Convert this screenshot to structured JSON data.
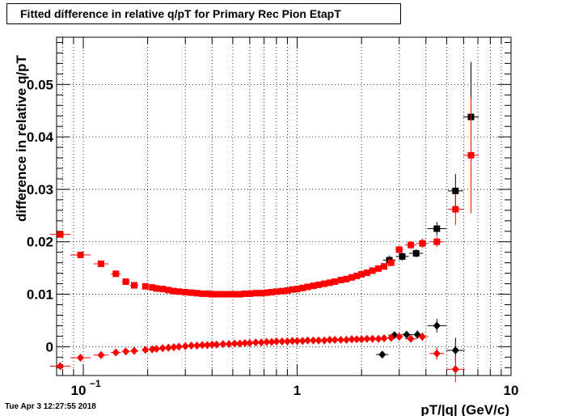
{
  "footer": {
    "timestamp": "Tue Apr  3 12:27:55 2018"
  },
  "chart_data": {
    "type": "scatter",
    "title": "Fitted difference in relative q/pT for Primary Rec Pion EtapT",
    "xlabel": "pT/|q| (GeV/c)",
    "ylabel": "difference in relative q/pT",
    "xscale": "log",
    "xlim": [
      0.075,
      10
    ],
    "ylim": [
      -0.0055,
      0.059
    ],
    "grid": true,
    "x_ticks": [
      {
        "value": 0.1,
        "base": "10",
        "exp": "−1"
      },
      {
        "value": 1,
        "label": "1"
      },
      {
        "value": 10,
        "label": "10"
      }
    ],
    "y_ticks": [
      {
        "value": 0,
        "label": "0"
      },
      {
        "value": 0.01,
        "label": "0.01"
      },
      {
        "value": 0.02,
        "label": "0.02"
      },
      {
        "value": 0.03,
        "label": "0.03"
      },
      {
        "value": 0.04,
        "label": "0.04"
      },
      {
        "value": 0.05,
        "label": "0.05"
      }
    ],
    "series": [
      {
        "color": "#000000",
        "marker": "square",
        "points": [
          [
            2.7,
            0.0165,
            0.0009
          ],
          [
            3.1,
            0.0172,
            0.0008
          ],
          [
            3.6,
            0.0178,
            0.0008
          ],
          [
            4.5,
            0.0225,
            0.0013
          ],
          [
            5.5,
            0.0297,
            0.0032
          ],
          [
            6.5,
            0.0438,
            0.0105
          ]
        ]
      },
      {
        "color": "#000000",
        "marker": "diamond",
        "points": [
          [
            2.5,
            -0.0015,
            0.0004
          ],
          [
            2.85,
            0.0022,
            0.0006
          ],
          [
            3.25,
            0.0023,
            0.0007
          ],
          [
            3.65,
            0.0023,
            0.0008
          ],
          [
            4.5,
            0.004,
            0.0013
          ],
          [
            5.5,
            -0.0007,
            0.0024
          ]
        ]
      },
      {
        "color": "#ff0000",
        "marker": "square",
        "points": [
          [
            0.078,
            0.0214,
            0.0005
          ],
          [
            0.097,
            0.0175,
            0.0005
          ],
          [
            0.121,
            0.0158,
            0.0004
          ],
          [
            0.142,
            0.0139,
            0.0004
          ],
          [
            0.158,
            0.0124,
            0.0004
          ],
          [
            0.173,
            0.0117,
            0.0003
          ],
          [
            0.195,
            0.0115,
            0.0003
          ],
          [
            0.21,
            0.0113,
            0.0003
          ],
          [
            0.22,
            0.0111,
            0.0003
          ],
          [
            0.235,
            0.011,
            0.0003
          ],
          [
            0.25,
            0.0108,
            0.0003
          ],
          [
            0.265,
            0.0106,
            0.0003
          ],
          [
            0.28,
            0.0105,
            0.0003
          ],
          [
            0.3,
            0.0104,
            0.0003
          ],
          [
            0.32,
            0.0103,
            0.0003
          ],
          [
            0.34,
            0.0102,
            0.0003
          ],
          [
            0.36,
            0.0101,
            0.0003
          ],
          [
            0.38,
            0.0101,
            0.0003
          ],
          [
            0.4,
            0.01,
            0.0003
          ],
          [
            0.42,
            0.01,
            0.0003
          ],
          [
            0.45,
            0.01,
            0.0003
          ],
          [
            0.48,
            0.01,
            0.0003
          ],
          [
            0.51,
            0.01,
            0.0003
          ],
          [
            0.54,
            0.01,
            0.0003
          ],
          [
            0.57,
            0.0101,
            0.0003
          ],
          [
            0.6,
            0.0101,
            0.0003
          ],
          [
            0.64,
            0.0102,
            0.0003
          ],
          [
            0.68,
            0.0102,
            0.0003
          ],
          [
            0.72,
            0.0103,
            0.0003
          ],
          [
            0.76,
            0.0104,
            0.0003
          ],
          [
            0.8,
            0.0105,
            0.0003
          ],
          [
            0.85,
            0.0106,
            0.0003
          ],
          [
            0.9,
            0.0107,
            0.0003
          ],
          [
            0.95,
            0.0109,
            0.0003
          ],
          [
            1.0,
            0.011,
            0.0003
          ],
          [
            1.06,
            0.0112,
            0.0003
          ],
          [
            1.12,
            0.0114,
            0.0003
          ],
          [
            1.19,
            0.0116,
            0.0003
          ],
          [
            1.26,
            0.0118,
            0.0003
          ],
          [
            1.34,
            0.012,
            0.0004
          ],
          [
            1.42,
            0.0122,
            0.0004
          ],
          [
            1.5,
            0.0124,
            0.0004
          ],
          [
            1.6,
            0.0127,
            0.0004
          ],
          [
            1.7,
            0.0129,
            0.0004
          ],
          [
            1.8,
            0.0132,
            0.0004
          ],
          [
            1.9,
            0.0135,
            0.0004
          ],
          [
            2.0,
            0.0138,
            0.0004
          ],
          [
            2.12,
            0.0141,
            0.0004
          ],
          [
            2.25,
            0.0145,
            0.0005
          ],
          [
            2.4,
            0.0149,
            0.0005
          ],
          [
            2.55,
            0.0153,
            0.0005
          ],
          [
            2.75,
            0.016,
            0.0006
          ],
          [
            3.0,
            0.0185,
            0.0007
          ],
          [
            3.4,
            0.0194,
            0.0008
          ],
          [
            3.85,
            0.0197,
            0.0009
          ],
          [
            4.5,
            0.02,
            0.001
          ],
          [
            5.5,
            0.0262,
            0.003
          ],
          [
            6.5,
            0.0365,
            0.011
          ]
        ]
      },
      {
        "color": "#ff0000",
        "marker": "diamond",
        "points": [
          [
            0.078,
            -0.0037,
            0.0004
          ],
          [
            0.097,
            -0.0021,
            0.0004
          ],
          [
            0.121,
            -0.0016,
            0.0004
          ],
          [
            0.142,
            -0.0011,
            0.0004
          ],
          [
            0.158,
            -0.0009,
            0.0003
          ],
          [
            0.173,
            -0.0008,
            0.0003
          ],
          [
            0.195,
            -0.0006,
            0.0003
          ],
          [
            0.21,
            -0.0005,
            0.0003
          ],
          [
            0.22,
            -0.0004,
            0.0003
          ],
          [
            0.235,
            -0.0003,
            0.0003
          ],
          [
            0.25,
            -0.0002,
            0.0003
          ],
          [
            0.265,
            -0.0001,
            0.0003
          ],
          [
            0.28,
            0.0,
            0.0003
          ],
          [
            0.3,
            0.0001,
            0.0003
          ],
          [
            0.32,
            0.0002,
            0.0003
          ],
          [
            0.34,
            0.0002,
            0.0003
          ],
          [
            0.36,
            0.0003,
            0.0003
          ],
          [
            0.38,
            0.0003,
            0.0003
          ],
          [
            0.4,
            0.0004,
            0.0003
          ],
          [
            0.42,
            0.0004,
            0.0003
          ],
          [
            0.45,
            0.0005,
            0.0003
          ],
          [
            0.48,
            0.0005,
            0.0003
          ],
          [
            0.51,
            0.0006,
            0.0003
          ],
          [
            0.54,
            0.0006,
            0.0003
          ],
          [
            0.57,
            0.0007,
            0.0003
          ],
          [
            0.6,
            0.0007,
            0.0003
          ],
          [
            0.64,
            0.0008,
            0.0003
          ],
          [
            0.68,
            0.0008,
            0.0003
          ],
          [
            0.72,
            0.0009,
            0.0003
          ],
          [
            0.76,
            0.0009,
            0.0003
          ],
          [
            0.8,
            0.001,
            0.0003
          ],
          [
            0.85,
            0.001,
            0.0003
          ],
          [
            0.9,
            0.001,
            0.0003
          ],
          [
            0.95,
            0.0011,
            0.0003
          ],
          [
            1.0,
            0.0011,
            0.0003
          ],
          [
            1.06,
            0.0011,
            0.0003
          ],
          [
            1.12,
            0.0012,
            0.0003
          ],
          [
            1.19,
            0.0012,
            0.0003
          ],
          [
            1.26,
            0.0012,
            0.0003
          ],
          [
            1.34,
            0.0012,
            0.0003
          ],
          [
            1.42,
            0.0013,
            0.0003
          ],
          [
            1.5,
            0.0013,
            0.0003
          ],
          [
            1.6,
            0.0013,
            0.0003
          ],
          [
            1.7,
            0.0013,
            0.0004
          ],
          [
            1.8,
            0.0014,
            0.0004
          ],
          [
            1.9,
            0.0014,
            0.0004
          ],
          [
            2.0,
            0.0014,
            0.0004
          ],
          [
            2.12,
            0.0015,
            0.0004
          ],
          [
            2.25,
            0.0015,
            0.0004
          ],
          [
            2.4,
            0.0015,
            0.0005
          ],
          [
            2.55,
            0.0016,
            0.0005
          ],
          [
            2.75,
            0.0017,
            0.0005
          ],
          [
            3.0,
            0.0019,
            0.0006
          ],
          [
            3.4,
            0.0015,
            0.0007
          ],
          [
            3.85,
            0.0019,
            0.0008
          ],
          [
            4.5,
            -0.0013,
            0.0012
          ],
          [
            5.5,
            -0.0043,
            0.0025
          ]
        ]
      }
    ]
  }
}
